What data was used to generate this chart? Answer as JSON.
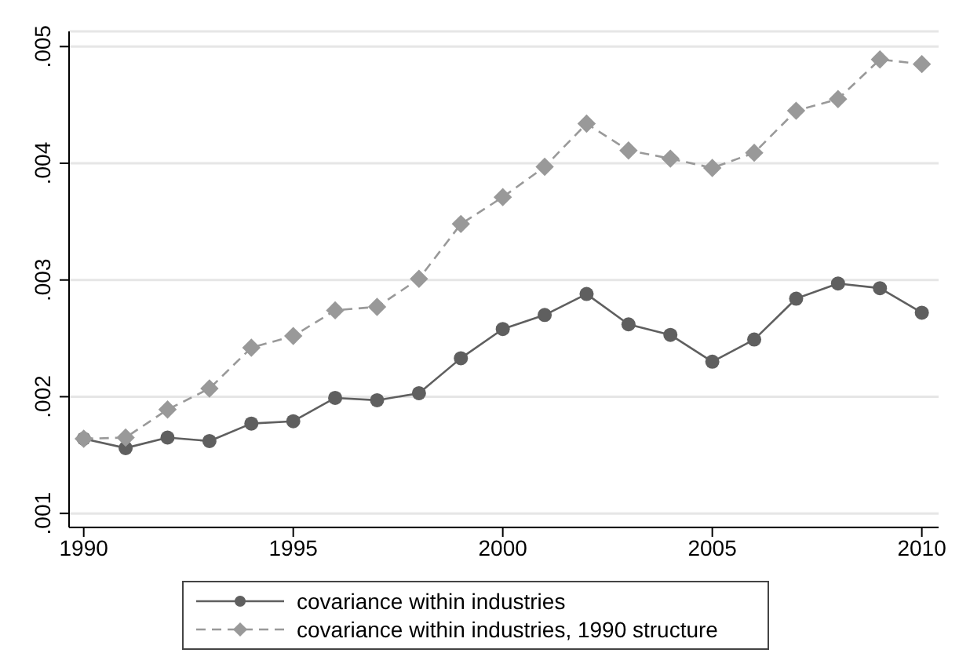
{
  "chart_data": {
    "type": "line",
    "x": [
      1990,
      1991,
      1992,
      1993,
      1994,
      1995,
      1996,
      1997,
      1998,
      1999,
      2000,
      2001,
      2002,
      2003,
      2004,
      2005,
      2006,
      2007,
      2008,
      2009,
      2010
    ],
    "series": [
      {
        "name": "covariance within industries",
        "color": "#5f5f5f",
        "marker": "circle",
        "line_style": "solid",
        "values": [
          0.00164,
          0.00156,
          0.00165,
          0.00162,
          0.00177,
          0.00179,
          0.00199,
          0.00197,
          0.00203,
          0.00233,
          0.00258,
          0.0027,
          0.00288,
          0.00262,
          0.00253,
          0.0023,
          0.00249,
          0.00284,
          0.00297,
          0.00293,
          0.00272
        ]
      },
      {
        "name": "covariance within industries, 1990 structure",
        "color": "#999999",
        "marker": "diamond",
        "line_style": "dashed",
        "values": [
          0.00164,
          0.00165,
          0.00189,
          0.00207,
          0.00242,
          0.00252,
          0.00274,
          0.00277,
          0.00301,
          0.00348,
          0.00371,
          0.00397,
          0.00434,
          0.00411,
          0.00404,
          0.00396,
          0.00409,
          0.00445,
          0.00455,
          0.00489,
          0.00485
        ]
      }
    ],
    "xlim": [
      1989.65,
      2010.4
    ],
    "xticks": [
      1990,
      1995,
      2000,
      2005,
      2010
    ],
    "ylim": [
      0.00088,
      0.00513
    ],
    "yticks": [
      {
        "value": 0.001,
        "label": ".001"
      },
      {
        "value": 0.002,
        "label": ".002"
      },
      {
        "value": 0.003,
        "label": ".003"
      },
      {
        "value": 0.004,
        "label": ".004"
      },
      {
        "value": 0.005,
        "label": ".005"
      }
    ],
    "grid": "y",
    "legend": "bottom"
  }
}
